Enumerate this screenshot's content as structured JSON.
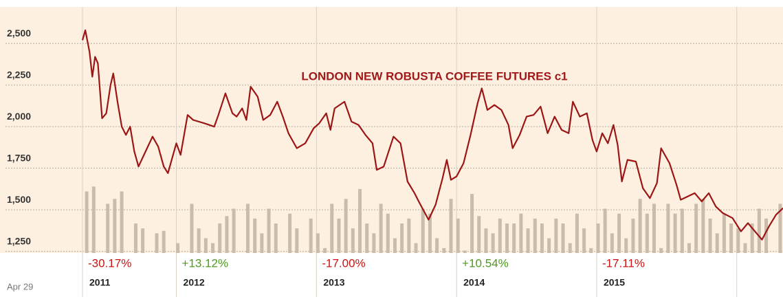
{
  "chart_data": {
    "type": "line",
    "title": "LONDON NEW ROBUSTA COFFEE FUTURES c1",
    "x_start_label": "Apr 29",
    "xlim": [
      2011.33,
      2016.33
    ],
    "xticks": [
      {
        "value": 2011.33,
        "label": "2011"
      },
      2012,
      2013,
      2014,
      2015,
      {
        "value": 2016,
        "label": null
      }
    ],
    "ylim": [
      1240,
      2720
    ],
    "yticks": [
      {
        "value": 1250,
        "label": "1,250"
      },
      {
        "value": 1500,
        "label": "1,500"
      },
      {
        "value": 1750,
        "label": "1,750"
      },
      {
        "value": 2000,
        "label": "2,000"
      },
      {
        "value": 2250,
        "label": "2,250"
      },
      {
        "value": 2500,
        "label": "2,500"
      }
    ],
    "y2lim": [
      0,
      100
    ],
    "grid": true,
    "changes": {
      "values": [
        -30.17,
        13.12,
        -17.0,
        10.54,
        -17.11
      ],
      "value_labels": [
        "-30.17%",
        "+13.12%",
        "-17.00%",
        "+10.54%",
        "-17.11%"
      ],
      "colors": {
        "negative": "#cc1111",
        "positive": "#4c9a1c"
      }
    },
    "series": [
      {
        "color": "#9b1515",
        "x": [
          2011.33,
          2011.35,
          2011.38,
          2011.4,
          2011.42,
          2011.44,
          2011.47,
          2011.5,
          2011.53,
          2011.55,
          2011.58,
          2011.61,
          2011.64,
          2011.67,
          2011.7,
          2011.73,
          2011.78,
          2011.83,
          2011.87,
          2011.91,
          2011.94,
          2012.0,
          2012.03,
          2012.08,
          2012.12,
          2012.2,
          2012.27,
          2012.3,
          2012.35,
          2012.4,
          2012.43,
          2012.47,
          2012.5,
          2012.53,
          2012.58,
          2012.62,
          2012.67,
          2012.72,
          2012.76,
          2012.8,
          2012.86,
          2012.92,
          2012.98,
          2013.02,
          2013.07,
          2013.1,
          2013.13,
          2013.2,
          2013.25,
          2013.3,
          2013.35,
          2013.4,
          2013.43,
          2013.48,
          2013.55,
          2013.6,
          2013.65,
          2013.7,
          2013.73,
          2013.8,
          2013.85,
          2013.9,
          2013.93,
          2013.96,
          2014.0,
          2014.05,
          2014.1,
          2014.15,
          2014.18,
          2014.22,
          2014.27,
          2014.32,
          2014.37,
          2014.4,
          2014.45,
          2014.5,
          2014.55,
          2014.6,
          2014.65,
          2014.7,
          2014.75,
          2014.8,
          2014.83,
          2014.88,
          2014.93,
          2014.97,
          2015.0,
          2015.04,
          2015.08,
          2015.12,
          2015.15,
          2015.18,
          2015.22,
          2015.28,
          2015.33,
          2015.38,
          2015.43,
          2015.46,
          2015.52,
          2015.57,
          2015.6,
          2015.65,
          2015.7,
          2015.75,
          2015.8,
          2015.85,
          2015.9,
          2015.97,
          2016.03,
          2016.08,
          2016.13,
          2016.18,
          2016.23,
          2016.28,
          2016.33
        ],
        "values": [
          2520,
          2580,
          2450,
          2300,
          2420,
          2380,
          2050,
          2080,
          2250,
          2320,
          2150,
          2000,
          1950,
          2000,
          1850,
          1760,
          1850,
          1940,
          1880,
          1760,
          1720,
          1900,
          1830,
          2070,
          2040,
          2020,
          2000,
          2070,
          2200,
          2080,
          2060,
          2110,
          2040,
          2240,
          2180,
          2040,
          2070,
          2150,
          2060,
          1960,
          1870,
          1900,
          1990,
          2020,
          2080,
          1980,
          2110,
          2150,
          2030,
          2010,
          1950,
          1900,
          1740,
          1760,
          1940,
          1900,
          1670,
          1600,
          1550,
          1440,
          1530,
          1690,
          1800,
          1680,
          1700,
          1780,
          1950,
          2140,
          2230,
          2100,
          2130,
          2100,
          2010,
          1870,
          1950,
          2060,
          2070,
          2120,
          1960,
          2060,
          1980,
          1960,
          2150,
          2060,
          2080,
          1920,
          1850,
          1960,
          1900,
          2010,
          1890,
          1670,
          1800,
          1790,
          1630,
          1570,
          1660,
          1870,
          1780,
          1650,
          1560,
          1580,
          1600,
          1550,
          1600,
          1520,
          1480,
          1450,
          1370,
          1420,
          1370,
          1320,
          1400,
          1470,
          1510
        ]
      },
      {
        "type": "bar",
        "axis": "y2",
        "color": "#c9bcad",
        "x": [
          2011.36,
          2011.41,
          2011.46,
          2011.51,
          2011.56,
          2011.61,
          2011.66,
          2011.71,
          2011.76,
          2011.81,
          2011.86,
          2011.91,
          2011.96,
          2012.01,
          2012.06,
          2012.11,
          2012.16,
          2012.21,
          2012.26,
          2012.31,
          2012.36,
          2012.41,
          2012.46,
          2012.51,
          2012.56,
          2012.61,
          2012.66,
          2012.71,
          2012.76,
          2012.81,
          2012.86,
          2012.91,
          2012.96,
          2013.01,
          2013.06,
          2013.11,
          2013.16,
          2013.21,
          2013.26,
          2013.31,
          2013.36,
          2013.41,
          2013.46,
          2013.51,
          2013.56,
          2013.61,
          2013.66,
          2013.71,
          2013.76,
          2013.81,
          2013.86,
          2013.91,
          2013.96,
          2014.01,
          2014.06,
          2014.11,
          2014.16,
          2014.21,
          2014.26,
          2014.31,
          2014.36,
          2014.41,
          2014.46,
          2014.51,
          2014.56,
          2014.61,
          2014.66,
          2014.71,
          2014.76,
          2014.81,
          2014.86,
          2014.91,
          2014.96,
          2015.01,
          2015.06,
          2015.11,
          2015.16,
          2015.21,
          2015.26,
          2015.31,
          2015.36,
          2015.41,
          2015.46,
          2015.51,
          2015.56,
          2015.61,
          2015.66,
          2015.71,
          2015.76,
          2015.81,
          2015.86,
          2015.91,
          2015.96,
          2016.01,
          2016.06,
          2016.11,
          2016.16,
          2016.21,
          2016.26,
          2016.31
        ],
        "values": [
          25,
          27,
          0,
          20,
          22,
          25,
          0,
          12,
          10,
          0,
          8,
          9,
          0,
          4,
          0,
          20,
          10,
          6,
          4,
          12,
          15,
          18,
          0,
          20,
          14,
          8,
          18,
          12,
          0,
          16,
          10,
          0,
          14,
          8,
          2,
          20,
          14,
          22,
          10,
          26,
          12,
          8,
          20,
          16,
          6,
          12,
          14,
          4,
          18,
          16,
          6,
          2,
          22,
          14,
          1,
          24,
          15,
          10,
          8,
          14,
          12,
          12,
          16,
          10,
          14,
          12,
          6,
          14,
          12,
          4,
          16,
          10,
          2,
          12,
          18,
          8,
          16,
          6,
          14,
          22,
          16,
          20,
          2,
          20,
          16,
          18,
          4,
          20,
          22,
          14,
          8,
          16,
          12,
          10,
          4,
          12,
          18,
          14,
          0,
          20
        ]
      }
    ]
  }
}
